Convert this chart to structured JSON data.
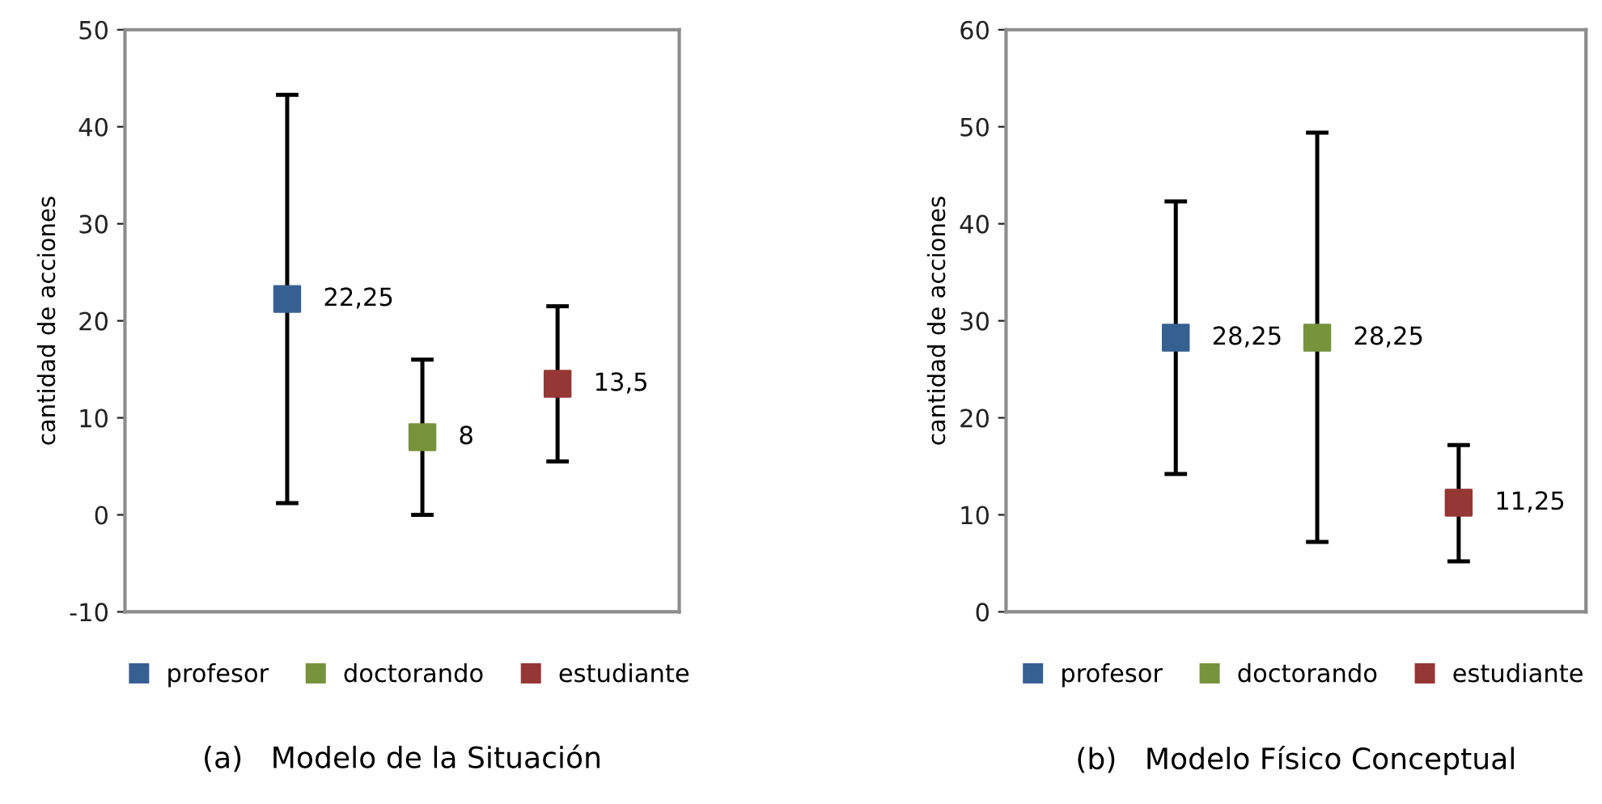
{
  "chart_data": [
    {
      "type": "scatter",
      "ylabel": "cantidad de acciones",
      "categories": [
        null,
        null,
        null
      ],
      "ylim": [
        -10,
        50
      ],
      "yticks": [
        -10,
        0,
        10,
        20,
        30,
        40,
        50
      ],
      "marker": "square",
      "legend": "bottom",
      "grid": false,
      "tick_labels": "y",
      "annotations": [
        "(a)   Modelo de la Situación"
      ],
      "series": [
        {
          "name": "profesor",
          "color": "#376092",
          "values": [
            22.25,
            null,
            null
          ],
          "errors": [
            [
              1.2,
              43.3
            ],
            null,
            null
          ],
          "value_labels": [
            "22,25",
            null,
            null
          ]
        },
        {
          "name": "doctorando",
          "color": "#77933c",
          "values": [
            null,
            8,
            null
          ],
          "errors": [
            null,
            [
              0,
              16
            ],
            null
          ],
          "value_labels": [
            null,
            "8",
            null
          ]
        },
        {
          "name": "estudiante",
          "color": "#953735",
          "values": [
            null,
            null,
            13.5
          ],
          "errors": [
            null,
            null,
            [
              5.5,
              21.5
            ]
          ],
          "value_labels": [
            null,
            null,
            "13,5"
          ]
        }
      ]
    },
    {
      "type": "scatter",
      "ylabel": "cantidad de acciones",
      "categories": [
        null,
        null,
        null
      ],
      "ylim": [
        0,
        60
      ],
      "yticks": [
        0,
        10,
        20,
        30,
        40,
        50,
        60
      ],
      "marker": "square",
      "legend": "bottom",
      "grid": false,
      "tick_labels": "y",
      "annotations": [
        "(b)   Modelo Físico Conceptual"
      ],
      "series": [
        {
          "name": "profesor",
          "color": "#376092",
          "values": [
            28.25,
            null,
            null
          ],
          "errors": [
            [
              14.2,
              42.3
            ],
            null,
            null
          ],
          "value_labels": [
            "28,25",
            null,
            null
          ]
        },
        {
          "name": "doctorando",
          "color": "#77933c",
          "values": [
            null,
            28.25,
            null
          ],
          "errors": [
            null,
            [
              7.2,
              49.4
            ],
            null
          ],
          "value_labels": [
            null,
            "28,25",
            null
          ]
        },
        {
          "name": "estudiante",
          "color": "#953735",
          "values": [
            null,
            null,
            11.25
          ],
          "errors": [
            null,
            null,
            [
              5.2,
              17.2
            ]
          ],
          "value_labels": [
            null,
            null,
            "11,25"
          ]
        }
      ]
    }
  ]
}
